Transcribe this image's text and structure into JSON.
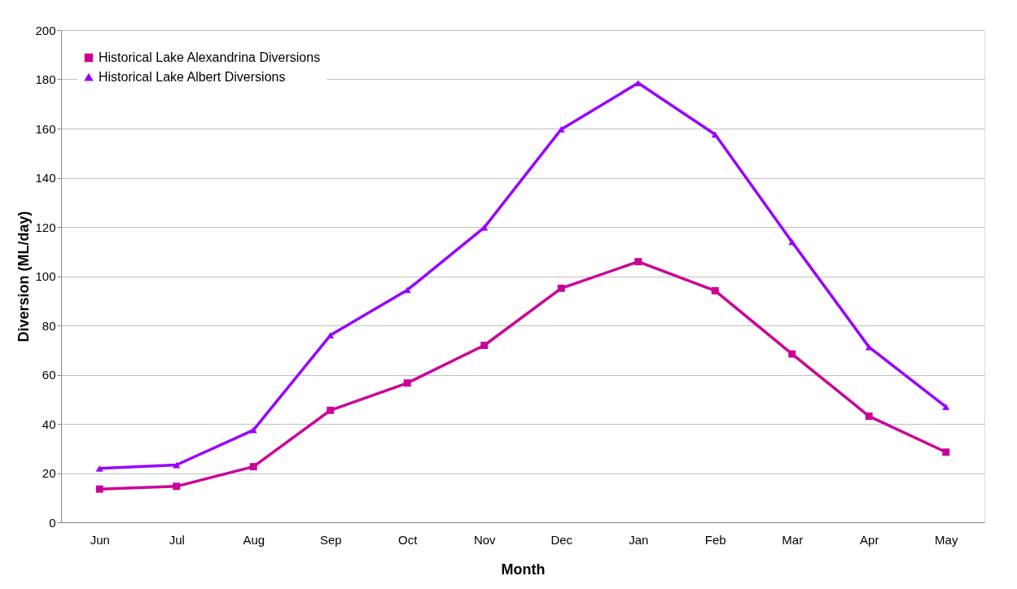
{
  "chart_data": {
    "type": "line",
    "xlabel": "Month",
    "ylabel": "Diversion (ML/day)",
    "categories": [
      "Jun",
      "Jul",
      "Aug",
      "Sep",
      "Oct",
      "Nov",
      "Dec",
      "Jan",
      "Feb",
      "Mar",
      "Apr",
      "May"
    ],
    "series": [
      {
        "name": "Historical Lake Alexandrina Diversions",
        "color": "#cc0099",
        "marker": "square",
        "values": [
          13.5,
          14.6,
          22.6,
          45.5,
          56.6,
          71.9,
          95.1,
          105.9,
          94.1,
          68.4,
          43.1,
          28.5
        ]
      },
      {
        "name": "Historical Lake Albert Diversions",
        "color": "#9900ff",
        "marker": "triangle",
        "values": [
          21.9,
          23.3,
          37.5,
          76,
          94.4,
          119.8,
          159.7,
          178.5,
          157.6,
          113.9,
          71.2,
          46.9
        ]
      }
    ],
    "ylim": [
      0,
      200
    ],
    "yticks": [
      0,
      20,
      40,
      60,
      80,
      100,
      120,
      140,
      160,
      180,
      200
    ],
    "grid": "y",
    "legend": "top left",
    "line_style": "solid"
  }
}
